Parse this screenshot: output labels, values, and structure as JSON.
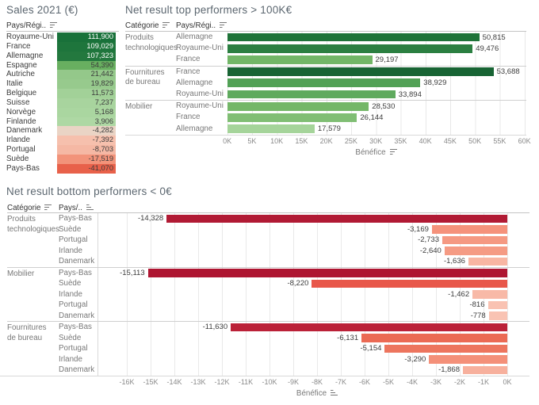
{
  "chart_data": [
    {
      "type": "table",
      "title": "Sales 2021 (€)",
      "col_header": "Pays/Régi..",
      "col_header_sort": "descending",
      "rows": [
        {
          "country": "Royaume-Uni",
          "value": 111900,
          "label": "111,900",
          "color": "#19713a",
          "text_color": "#ffffff"
        },
        {
          "country": "France",
          "value": 109029,
          "label": "109,029",
          "color": "#1e753c",
          "text_color": "#ffffff"
        },
        {
          "country": "Allemagne",
          "value": 107323,
          "label": "107,323",
          "color": "#23783e",
          "text_color": "#ffffff"
        },
        {
          "country": "Espagne",
          "value": 54390,
          "label": "54,390",
          "color": "#68af60",
          "text_color": "#3c3c3c"
        },
        {
          "country": "Autriche",
          "value": 21442,
          "label": "21,442",
          "color": "#94c88a",
          "text_color": "#3c3c3c"
        },
        {
          "country": "Italie",
          "value": 19829,
          "label": "19,829",
          "color": "#97ca8d",
          "text_color": "#3c3c3c"
        },
        {
          "country": "Belgique",
          "value": 11573,
          "label": "11,573",
          "color": "#a2d198",
          "text_color": "#3c3c3c"
        },
        {
          "country": "Suisse",
          "value": 7237,
          "label": "7,237",
          "color": "#a8d49e",
          "text_color": "#3c3c3c"
        },
        {
          "country": "Norvège",
          "value": 5168,
          "label": "5,168",
          "color": "#aad6a0",
          "text_color": "#3c3c3c"
        },
        {
          "country": "Finlande",
          "value": 3906,
          "label": "3,906",
          "color": "#aed8a4",
          "text_color": "#3c3c3c"
        },
        {
          "country": "Danemark",
          "value": -4282,
          "label": "-4,282",
          "color": "#ead4c5",
          "text_color": "#3c3c3c"
        },
        {
          "country": "Irlande",
          "value": -7392,
          "label": "-7,392",
          "color": "#f6c0ad",
          "text_color": "#3c3c3c"
        },
        {
          "country": "Portugal",
          "value": -8703,
          "label": "-8,703",
          "color": "#f5b8a4",
          "text_color": "#3c3c3c"
        },
        {
          "country": "Suède",
          "value": -17519,
          "label": "-17,519",
          "color": "#f2937a",
          "text_color": "#3c3c3c"
        },
        {
          "country": "Pays-Bas",
          "value": -41070,
          "label": "-41,070",
          "color": "#e8614a",
          "text_color": "#3c3c3c"
        }
      ]
    },
    {
      "type": "bar",
      "title": "Net result top performers > 100K€",
      "col1_header": "Catégorie",
      "col1_sort": "descending",
      "col2_header": "Pays/Régi..",
      "col2_sort": "descending",
      "xlabel": "Bénéfice",
      "xlabel_sort": "descending",
      "xlim": [
        0,
        60000
      ],
      "grid": true,
      "ticks": [
        "0K",
        "5K",
        "10K",
        "15K",
        "20K",
        "25K",
        "30K",
        "35K",
        "40K",
        "45K",
        "50K",
        "55K",
        "60K"
      ],
      "groups": [
        {
          "category": "Produits technologiques",
          "rows": [
            {
              "country": "Allemagne",
              "value": 50815,
              "label": "50,815",
              "color": "#1f7339"
            },
            {
              "country": "Royaume-Uni",
              "value": 49476,
              "label": "49,476",
              "color": "#2b7f41"
            },
            {
              "country": "France",
              "value": 29197,
              "label": "29,197",
              "color": "#72b667"
            }
          ]
        },
        {
          "category": "Fournitures de bureau",
          "rows": [
            {
              "country": "France",
              "value": 53688,
              "label": "53,688",
              "color": "#186434"
            },
            {
              "country": "Allemagne",
              "value": 38929,
              "label": "38,929",
              "color": "#52a156"
            },
            {
              "country": "Royaume-Uni",
              "value": 33894,
              "label": "33,894",
              "color": "#5faa5e"
            }
          ]
        },
        {
          "category": "Mobilier",
          "rows": [
            {
              "country": "Royaume-Uni",
              "value": 28530,
              "label": "28,530",
              "color": "#74b768"
            },
            {
              "country": "France",
              "value": 26144,
              "label": "26,144",
              "color": "#80be74"
            },
            {
              "country": "Allemagne",
              "value": 17579,
              "label": "17,579",
              "color": "#a5d49a"
            }
          ]
        }
      ]
    },
    {
      "type": "bar",
      "title": "Net result bottom performers < 0€",
      "col1_header": "Catégorie",
      "col1_sort": "descending",
      "col2_header": "Pays/..",
      "col2_sort": "ascending",
      "xlabel": "Bénéfice",
      "xlabel_sort": "ascending",
      "xlim": [
        -16000,
        0
      ],
      "grid": true,
      "ticks": [
        "-16K",
        "-15K",
        "-14K",
        "-13K",
        "-12K",
        "-11K",
        "-10K",
        "-9K",
        "-8K",
        "-7K",
        "-6K",
        "-5K",
        "-4K",
        "-3K",
        "-2K",
        "-1K",
        "0K"
      ],
      "groups": [
        {
          "category": "Produits technologiques",
          "rows": [
            {
              "country": "Pays-Bas",
              "value": -14328,
              "label": "-14,328",
              "color": "#b11a34"
            },
            {
              "country": "Suède",
              "value": -3169,
              "label": "-3,169",
              "color": "#f5927b"
            },
            {
              "country": "Portugal",
              "value": -2733,
              "label": "-2,733",
              "color": "#f59982"
            },
            {
              "country": "Irlande",
              "value": -2640,
              "label": "-2,640",
              "color": "#f59b84"
            },
            {
              "country": "Danemark",
              "value": -1636,
              "label": "-1,636",
              "color": "#f8b6a3"
            }
          ]
        },
        {
          "category": "Mobilier",
          "rows": [
            {
              "country": "Pays-Bas",
              "value": -15113,
              "label": "-15,113",
              "color": "#ae1531"
            },
            {
              "country": "Suède",
              "value": -8220,
              "label": "-8,220",
              "color": "#e8574a"
            },
            {
              "country": "Irlande",
              "value": -1462,
              "label": "-1,462",
              "color": "#f8b9a7"
            },
            {
              "country": "Portugal",
              "value": -816,
              "label": "-816",
              "color": "#f9c2b2"
            },
            {
              "country": "Danemark",
              "value": -778,
              "label": "-778",
              "color": "#f9c3b3"
            }
          ]
        },
        {
          "category": "Fournitures de bureau",
          "rows": [
            {
              "country": "Pays-Bas",
              "value": -11630,
              "label": "-11,630",
              "color": "#bb2138"
            },
            {
              "country": "Suède",
              "value": -6131,
              "label": "-6,131",
              "color": "#eb6a54"
            },
            {
              "country": "Portugal",
              "value": -5154,
              "label": "-5,154",
              "color": "#ed755e"
            },
            {
              "country": "Irlande",
              "value": -3290,
              "label": "-3,290",
              "color": "#f49079"
            },
            {
              "country": "Danemark",
              "value": -1868,
              "label": "-1,868",
              "color": "#f7b09d"
            }
          ]
        }
      ]
    }
  ],
  "icons": {
    "sort-descending-icon": "three stacked bars, widths decreasing downward",
    "sort-ascending-icon": "three stacked bars, widths increasing downward"
  }
}
